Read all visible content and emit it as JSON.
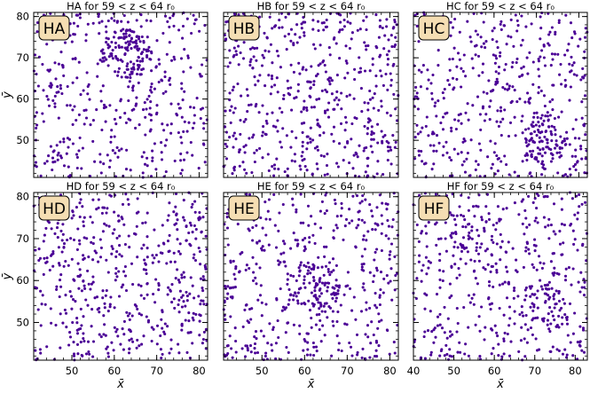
{
  "figure": {
    "point_color": "#4b0096",
    "badge_fill": "#f5deb3",
    "xlabel": "x̄",
    "ylabel": "ȳ"
  },
  "chart_data": [
    {
      "type": "scatter",
      "label": "HA",
      "title": "HA for 59 < z < 64 r₀",
      "xlim": [
        41,
        82
      ],
      "ylim": [
        41,
        81
      ],
      "xticks": [
        50,
        60,
        70,
        80
      ],
      "yticks": [
        50,
        60,
        70,
        80
      ],
      "n_points": 520,
      "seed": 11,
      "clusters": [
        [
          63,
          71,
          35
        ]
      ]
    },
    {
      "type": "scatter",
      "label": "HB",
      "title": "HB for 59 < z < 64 r₀",
      "xlim": [
        41,
        82
      ],
      "ylim": [
        41,
        81
      ],
      "xticks": [
        50,
        60,
        70,
        80
      ],
      "yticks": [
        50,
        60,
        70,
        80
      ],
      "n_points": 520,
      "seed": 23,
      "clusters": []
    },
    {
      "type": "scatter",
      "label": "HC",
      "title": "HC for 59 < z < 64 r₀",
      "xlim": [
        41,
        82
      ],
      "ylim": [
        41,
        81
      ],
      "xticks": [
        50,
        60,
        70,
        80
      ],
      "yticks": [
        50,
        60,
        70,
        80
      ],
      "n_points": 520,
      "seed": 37,
      "clusters": [
        [
          72,
          50,
          30
        ]
      ]
    },
    {
      "type": "scatter",
      "label": "HD",
      "title": "HD for 59 < z < 64 r₀",
      "xlim": [
        41,
        82
      ],
      "ylim": [
        41,
        81
      ],
      "xticks": [
        50,
        60,
        70,
        80
      ],
      "yticks": [
        50,
        60,
        70,
        80
      ],
      "n_points": 520,
      "seed": 41,
      "clusters": []
    },
    {
      "type": "scatter",
      "label": "HE",
      "title": "HE for 59 < z < 64 r₀",
      "xlim": [
        41,
        82
      ],
      "ylim": [
        41,
        81
      ],
      "xticks": [
        50,
        60,
        70,
        80
      ],
      "yticks": [
        50,
        60,
        70,
        80
      ],
      "n_points": 520,
      "seed": 53,
      "clusters": [
        [
          62,
          58,
          40
        ]
      ]
    },
    {
      "type": "scatter",
      "label": "HF",
      "title": "HF for 59 < z < 64 r₀",
      "xlim": [
        40,
        83
      ],
      "ylim": [
        41,
        81
      ],
      "xticks": [
        40,
        50,
        60,
        70,
        80
      ],
      "yticks": [
        50,
        60,
        70,
        80
      ],
      "n_points": 520,
      "seed": 67,
      "clusters": [
        [
          55,
          72,
          45
        ],
        [
          72,
          55,
          30
        ]
      ]
    }
  ]
}
